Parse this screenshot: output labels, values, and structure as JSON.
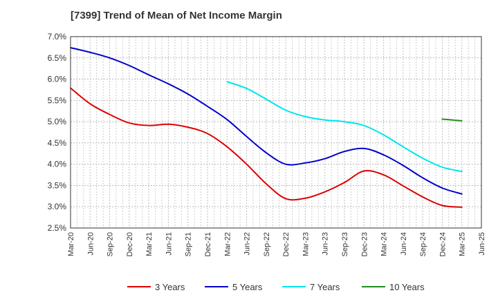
{
  "chart_data": {
    "type": "line",
    "title": "[7399]  Trend of Mean of Net Income Margin",
    "xlabel": "",
    "ylabel": "",
    "x_ticks": [
      "Mar-20",
      "Jun-20",
      "Sep-20",
      "Dec-20",
      "Mar-21",
      "Jun-21",
      "Sep-21",
      "Dec-21",
      "Mar-22",
      "Jun-22",
      "Sep-22",
      "Dec-22",
      "Mar-23",
      "Jun-23",
      "Sep-23",
      "Dec-23",
      "Mar-24",
      "Jun-24",
      "Sep-24",
      "Dec-24",
      "Mar-25",
      "Jun-25"
    ],
    "y_ticks": [
      "7.0%",
      "6.5%",
      "6.0%",
      "5.5%",
      "5.0%",
      "4.5%",
      "4.0%",
      "3.5%",
      "3.0%",
      "2.5%"
    ],
    "ylim": [
      2.5,
      7.0
    ],
    "grid": true,
    "legend_position": "bottom",
    "series": [
      {
        "name": "3 Years",
        "color": "#dd0000",
        "x": [
          "Mar-20",
          "Jun-20",
          "Sep-20",
          "Dec-20",
          "Mar-21",
          "Jun-21",
          "Sep-21",
          "Dec-21",
          "Mar-22",
          "Jun-22",
          "Sep-22",
          "Dec-22",
          "Mar-23",
          "Jun-23",
          "Sep-23",
          "Dec-23",
          "Mar-24",
          "Jun-24",
          "Sep-24",
          "Dec-24",
          "Mar-25"
        ],
        "values": [
          5.79,
          5.42,
          5.17,
          4.97,
          4.91,
          4.94,
          4.87,
          4.72,
          4.41,
          4.0,
          3.54,
          3.19,
          3.2,
          3.35,
          3.57,
          3.84,
          3.75,
          3.49,
          3.23,
          3.03,
          2.99
        ]
      },
      {
        "name": "5 Years",
        "color": "#0000cc",
        "x": [
          "Mar-20",
          "Jun-20",
          "Sep-20",
          "Dec-20",
          "Mar-21",
          "Jun-21",
          "Sep-21",
          "Dec-21",
          "Mar-22",
          "Jun-22",
          "Sep-22",
          "Dec-22",
          "Mar-23",
          "Jun-23",
          "Sep-23",
          "Dec-23",
          "Mar-24",
          "Jun-24",
          "Sep-24",
          "Dec-24",
          "Mar-25"
        ],
        "values": [
          6.74,
          6.63,
          6.5,
          6.32,
          6.1,
          5.89,
          5.65,
          5.36,
          5.05,
          4.65,
          4.27,
          4.0,
          4.03,
          4.13,
          4.3,
          4.37,
          4.22,
          3.97,
          3.68,
          3.44,
          3.3
        ]
      },
      {
        "name": "7 Years",
        "color": "#00e5ee",
        "x": [
          "Mar-22",
          "Jun-22",
          "Sep-22",
          "Dec-22",
          "Mar-23",
          "Jun-23",
          "Sep-23",
          "Dec-23",
          "Mar-24",
          "Jun-24",
          "Sep-24",
          "Dec-24",
          "Mar-25"
        ],
        "values": [
          5.94,
          5.78,
          5.53,
          5.27,
          5.12,
          5.04,
          5.0,
          4.91,
          4.69,
          4.41,
          4.14,
          3.93,
          3.83
        ]
      },
      {
        "name": "10 Years",
        "color": "#228b22",
        "x": [
          "Dec-24",
          "Mar-25"
        ],
        "values": [
          5.06,
          5.02
        ]
      }
    ]
  }
}
